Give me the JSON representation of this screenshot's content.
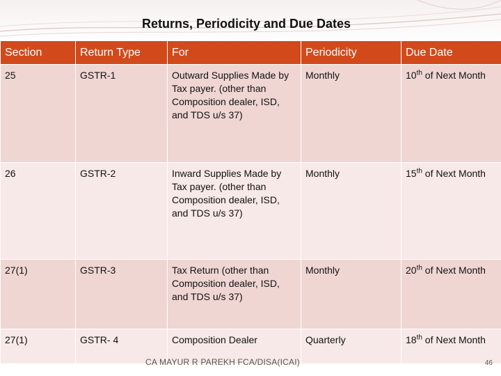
{
  "slide": {
    "title": "Returns, Periodicity and Due Dates",
    "footer": "CA MAYUR R PAREKH FCA/DISA(ICAI)",
    "page_number": "46"
  },
  "colors": {
    "header_bg": "#d24a1c",
    "row_dark": "#efd6d3",
    "row_light": "#f7e9e7"
  },
  "table": {
    "headers": [
      "Section",
      "Return Type",
      "For",
      "Periodicity",
      "Due Date"
    ],
    "rows": [
      {
        "section": "25",
        "return_type": "GSTR-1",
        "for": "Outward Supplies Made by Tax payer. (other than Composition dealer, ISD, and TDS u/s 37)",
        "periodicity": "Monthly",
        "due_day": "10",
        "due_suffix": "th",
        "due_rest": " of Next Month"
      },
      {
        "section": "26",
        "return_type": "GSTR-2",
        "for": "Inward Supplies Made by Tax payer. (other than Composition dealer, ISD, and TDS u/s 37)",
        "periodicity": "Monthly",
        "due_day": "15",
        "due_suffix": "th",
        "due_rest": " of Next Month"
      },
      {
        "section": "27(1)",
        "return_type": "GSTR-3",
        "for": "Tax Return (other than Composition dealer, ISD, and TDS u/s 37)",
        "periodicity": "Monthly",
        "due_day": "20",
        "due_suffix": "th",
        "due_rest": " of Next Month"
      },
      {
        "section": "27(1)",
        "return_type": "GSTR- 4",
        "for": "Composition Dealer",
        "periodicity": "Quarterly",
        "due_day": "18",
        "due_suffix": "th",
        "due_rest": " of Next Month"
      }
    ]
  }
}
